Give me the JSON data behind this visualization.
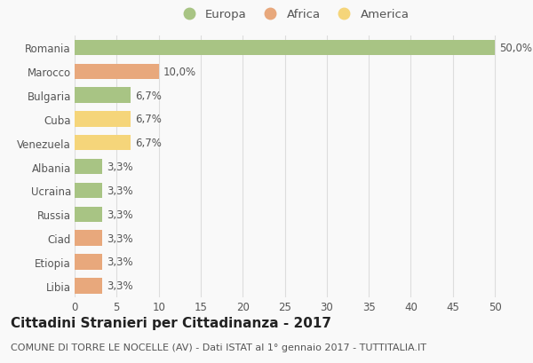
{
  "categories": [
    "Romania",
    "Marocco",
    "Bulgaria",
    "Cuba",
    "Venezuela",
    "Albania",
    "Ucraina",
    "Russia",
    "Ciad",
    "Etiopia",
    "Libia"
  ],
  "values": [
    50.0,
    10.0,
    6.7,
    6.7,
    6.7,
    3.3,
    3.3,
    3.3,
    3.3,
    3.3,
    3.3
  ],
  "labels": [
    "50,0%",
    "10,0%",
    "6,7%",
    "6,7%",
    "6,7%",
    "3,3%",
    "3,3%",
    "3,3%",
    "3,3%",
    "3,3%",
    "3,3%"
  ],
  "continents": [
    "Europa",
    "Africa",
    "Europa",
    "America",
    "America",
    "Europa",
    "Europa",
    "Europa",
    "Africa",
    "Africa",
    "Africa"
  ],
  "colors": {
    "Europa": "#a8c484",
    "Africa": "#e8a87c",
    "America": "#f5d57a"
  },
  "legend_order": [
    "Europa",
    "Africa",
    "America"
  ],
  "title": "Cittadini Stranieri per Cittadinanza - 2017",
  "subtitle": "COMUNE DI TORRE LE NOCELLE (AV) - Dati ISTAT al 1° gennaio 2017 - TUTTITALIA.IT",
  "xlim": [
    0,
    52
  ],
  "xticks": [
    0,
    5,
    10,
    15,
    20,
    25,
    30,
    35,
    40,
    45,
    50
  ],
  "background_color": "#f9f9f9",
  "grid_color": "#dddddd",
  "bar_height": 0.65,
  "title_fontsize": 11,
  "subtitle_fontsize": 8,
  "label_fontsize": 8.5,
  "tick_fontsize": 8.5,
  "legend_fontsize": 9.5
}
